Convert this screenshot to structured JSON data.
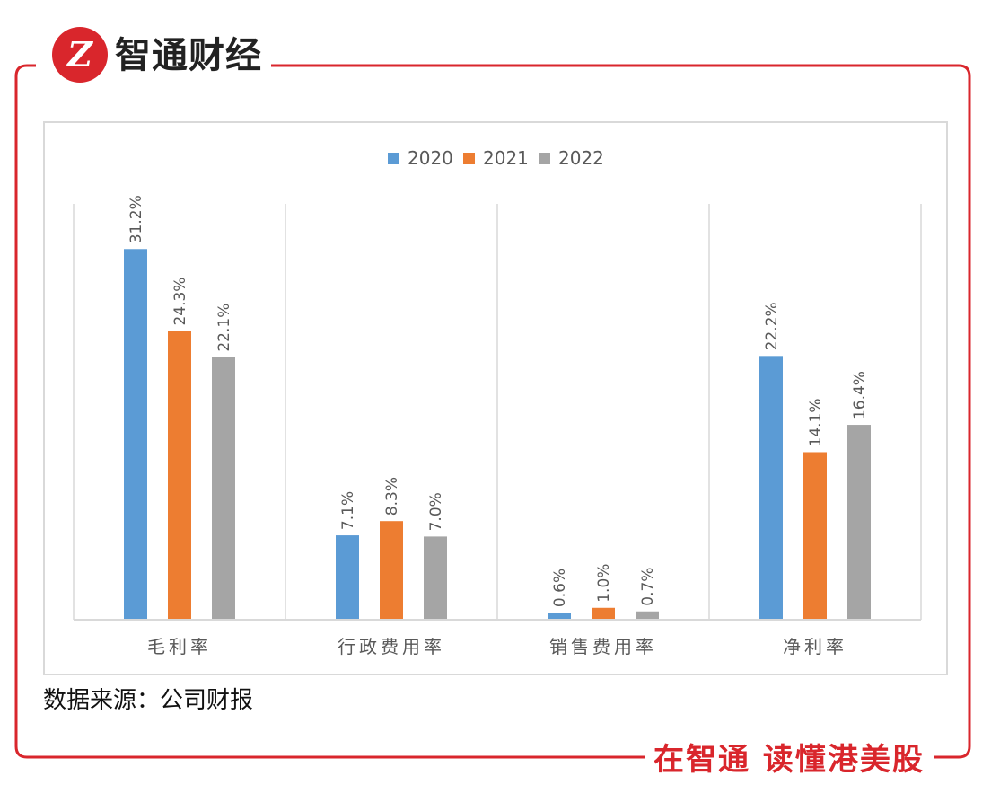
{
  "header": {
    "logo_mark": "Z",
    "brand_name": "智通财经"
  },
  "footer": {
    "slogan": "在智通 读懂港美股"
  },
  "source_text": "数据来源：公司财报",
  "colors": {
    "brand_red": "#d9262c",
    "s2020": "#5b9bd5",
    "s2021": "#ed7d31",
    "s2022": "#a5a5a5"
  },
  "chart_data": {
    "type": "bar",
    "title": "",
    "categories": [
      "毛利率",
      "行政费用率",
      "销售费用率",
      "净利率"
    ],
    "series": [
      {
        "name": "2020",
        "values": [
          31.2,
          7.1,
          0.6,
          22.2
        ],
        "labels": [
          "31.2%",
          "7.1%",
          "0.6%",
          "22.2%"
        ]
      },
      {
        "name": "2021",
        "values": [
          24.3,
          8.3,
          1.0,
          14.1
        ],
        "labels": [
          "24.3%",
          "8.3%",
          "1.0%",
          "14.1%"
        ]
      },
      {
        "name": "2022",
        "values": [
          22.1,
          7.0,
          0.7,
          16.4
        ],
        "labels": [
          "22.1%",
          "7.0%",
          "0.7%",
          "16.4%"
        ]
      }
    ],
    "ylim": [
      0,
      35
    ],
    "xlabel": "",
    "ylabel": "",
    "legend": "top-center",
    "grid": "vertical category separators"
  }
}
